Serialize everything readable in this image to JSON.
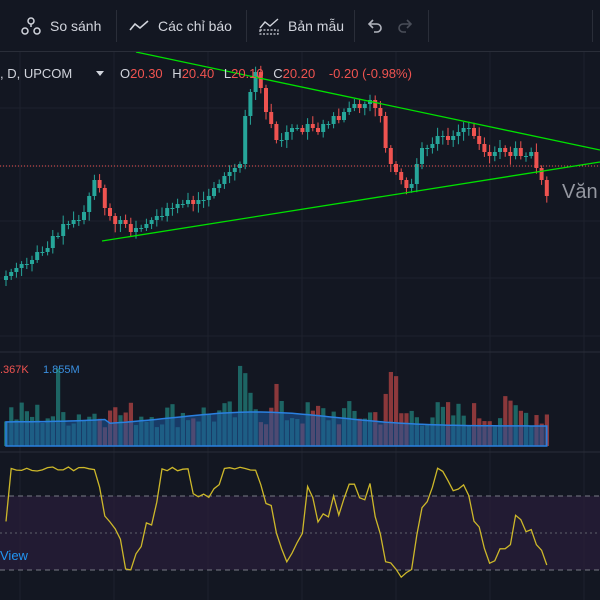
{
  "toolbar": {
    "compare_label": "So sánh",
    "indicators_label": "Các chỉ báo",
    "templates_label": "Bản mẫu",
    "icons": [
      "compare-icon",
      "indicators-icon",
      "templates-icon",
      "undo-icon",
      "redo-icon"
    ]
  },
  "legend": {
    "symbol": ", D, UPCOM",
    "open_label": "O",
    "open": "20.30",
    "high_label": "H",
    "high": "20.40",
    "low_label": "L",
    "low": "20.10",
    "close_label": "C",
    "close": "20.20",
    "change": "-0.20 (-0.98%)"
  },
  "volume_legend": {
    "volume": ".367K",
    "volume_ma": "1.855M"
  },
  "watermark": "Văn",
  "branding_fragment": "View",
  "colors": {
    "background": "#131722",
    "grid": "#1e222d",
    "up": "#26a69a",
    "down": "#ef5350",
    "trendline": "#00e000",
    "rsi_line": "#cdb82a",
    "rsi_band": "#2a1e3a",
    "volume_ma": "#1e6bc4",
    "text_up": "#26a69a"
  },
  "chart_data": {
    "type": "candlestick",
    "price_pane": {
      "close_series": [
        19.2,
        19.25,
        19.3,
        19.35,
        19.35,
        19.4,
        19.5,
        19.5,
        19.55,
        19.7,
        19.7,
        19.85,
        19.85,
        19.9,
        19.9,
        20.0,
        20.2,
        20.4,
        20.3,
        20.05,
        19.95,
        19.85,
        19.9,
        19.85,
        19.75,
        19.8,
        19.8,
        19.85,
        19.9,
        19.95,
        19.95,
        20.05,
        20.05,
        20.1,
        20.1,
        20.15,
        20.1,
        20.15,
        20.15,
        20.2,
        20.3,
        20.35,
        20.45,
        20.5,
        20.55,
        20.6,
        21.2,
        21.5,
        21.75,
        21.55,
        21.25,
        21.1,
        20.9,
        20.9,
        21.0,
        21.05,
        21.05,
        21.0,
        21.1,
        21.05,
        21.0,
        21.1,
        21.1,
        21.2,
        21.15,
        21.25,
        21.3,
        21.35,
        21.3,
        21.35,
        21.4,
        21.3,
        21.2,
        20.8,
        20.6,
        20.5,
        20.4,
        20.3,
        20.35,
        20.6,
        20.8,
        20.8,
        20.85,
        20.95,
        20.95,
        20.9,
        20.95,
        21.0,
        21.05,
        21.05,
        20.95,
        20.85,
        20.75,
        20.7,
        20.75,
        20.8,
        20.75,
        20.7,
        20.8,
        20.7,
        20.7,
        20.75,
        20.55,
        20.4,
        20.2
      ]
    },
    "volume_pane": {
      "legend": [
        "volume",
        "volume_ma"
      ]
    },
    "rsi_pane": {
      "bands": "upper and lower dashed levels"
    },
    "trendlines": [
      "descending resistance",
      "ascending support"
    ],
    "last_price_line": "dotted red horizontal at last close"
  }
}
